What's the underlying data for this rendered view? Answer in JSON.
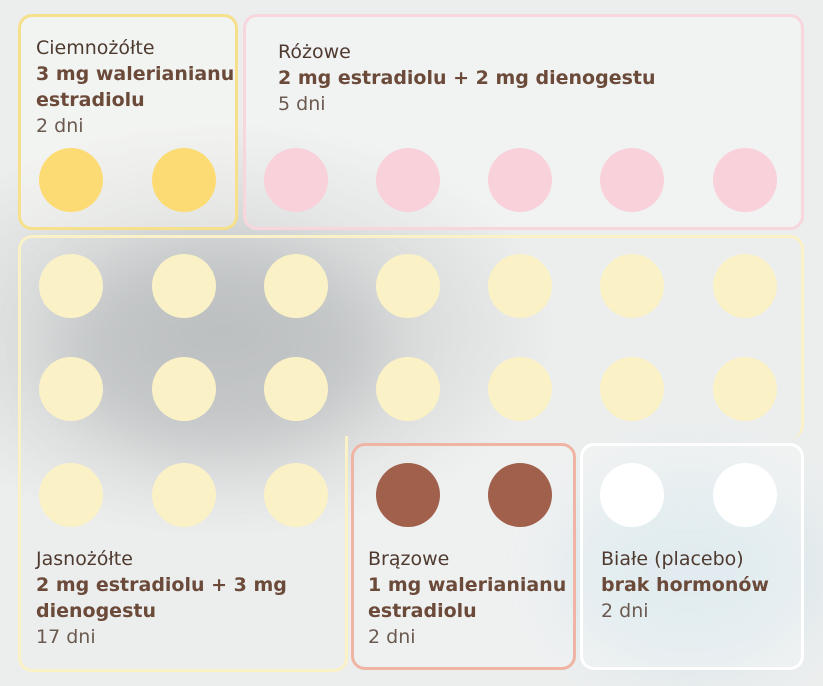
{
  "groups": {
    "dark_yellow": {
      "name": "Ciemnożółte",
      "dose": "3 mg walerianianu estradiolu",
      "days": "2 dni",
      "color": "#fddb74"
    },
    "pink": {
      "name": "Różowe",
      "dose": "2 mg estradiolu + 2 mg dienogestu",
      "days": "5 dni",
      "color": "#f9d1da"
    },
    "light_yellow": {
      "name": "Jasnożółte",
      "dose": "2 mg estradiolu + 3 mg dienogestu",
      "days": "17 dni",
      "color": "#fbf1c6"
    },
    "brown": {
      "name": "Brązowe",
      "dose": "1 mg walerianianu estradiolu",
      "days": "2 dni",
      "color": "#a0604b"
    },
    "white": {
      "name": "Białe (placebo)",
      "dose": "brak hormonów",
      "days": "2 dni",
      "color": "#ffffff"
    }
  },
  "pill_counts": {
    "dark_yellow": 2,
    "pink": 5,
    "light_yellow": 17,
    "brown": 2,
    "white": 2
  }
}
